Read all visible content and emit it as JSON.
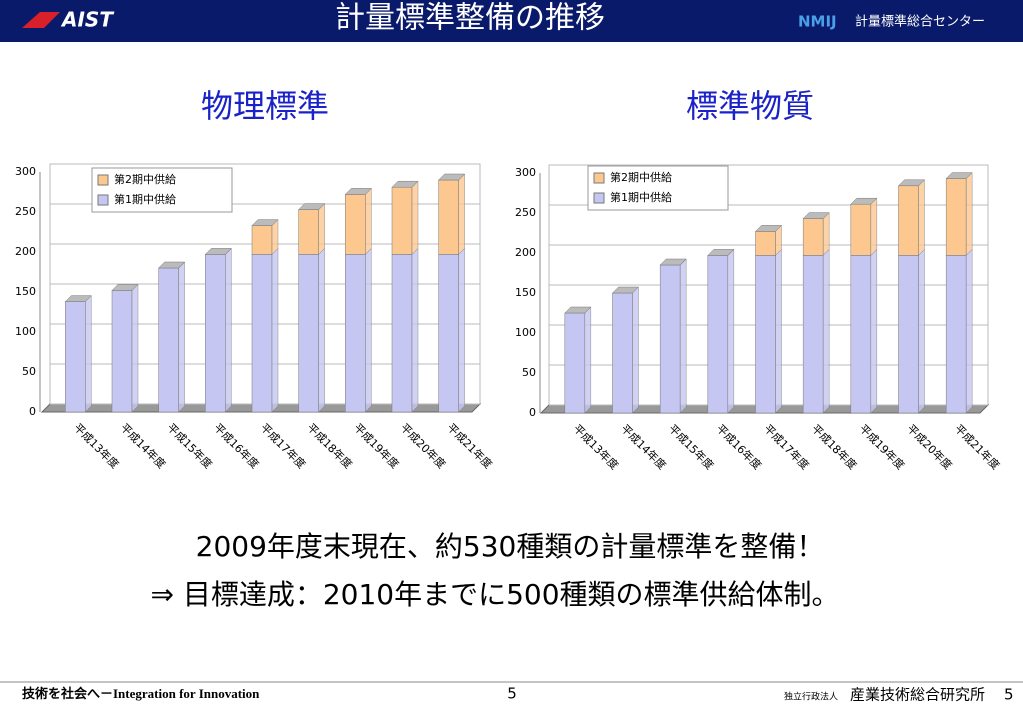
{
  "header": {
    "logo": "AIST",
    "title": "計量標準整備の推移",
    "org": "NMIJ",
    "org_name": "計量標準総合センター"
  },
  "chart_data": [
    {
      "type": "bar",
      "stacked": true,
      "title": "物理標準",
      "categories": [
        "平成13年度",
        "平成14年度",
        "平成15年度",
        "平成16年度",
        "平成17年度",
        "平成18年度",
        "平成19年度",
        "平成20年度",
        "平成21年度"
      ],
      "series": [
        {
          "name": "第1期中供給",
          "color": "#c6c6f2",
          "values": [
            138,
            152,
            180,
            197,
            197,
            197,
            197,
            197,
            197
          ]
        },
        {
          "name": "第2期中供給",
          "color": "#fdc890",
          "values": [
            0,
            0,
            0,
            0,
            36,
            56,
            75,
            84,
            93
          ]
        }
      ],
      "ylim": [
        0,
        300
      ],
      "yticks": [
        0,
        50,
        100,
        150,
        200,
        250,
        300
      ],
      "grid": true,
      "legend": "upper left"
    },
    {
      "type": "bar",
      "stacked": true,
      "title": "標準物質",
      "categories": [
        "平成13年度",
        "平成14年度",
        "平成15年度",
        "平成16年度",
        "平成17年度",
        "平成18年度",
        "平成19年度",
        "平成20年度",
        "平成21年度"
      ],
      "series": [
        {
          "name": "第1期中供給",
          "color": "#c6c6f2",
          "values": [
            125,
            150,
            185,
            197,
            197,
            197,
            197,
            197,
            197
          ]
        },
        {
          "name": "第2期中供給",
          "color": "#fdc890",
          "values": [
            0,
            0,
            0,
            0,
            30,
            46,
            64,
            87,
            96
          ]
        }
      ],
      "ylim": [
        0,
        300
      ],
      "yticks": [
        0,
        50,
        100,
        150,
        200,
        250,
        300
      ],
      "grid": true,
      "legend": "upper left"
    }
  ],
  "body": {
    "lines": [
      "2009年度末現在、約530種類の計量標準を整備！",
      "⇒ 目標達成：2010年までに500種類の標準供給体制。"
    ]
  },
  "footer": {
    "slogan": "技術を社会へ－Integration for Innovation",
    "page": "5",
    "org_type": "独立行政法人",
    "org": "産業技術総合研究所"
  }
}
